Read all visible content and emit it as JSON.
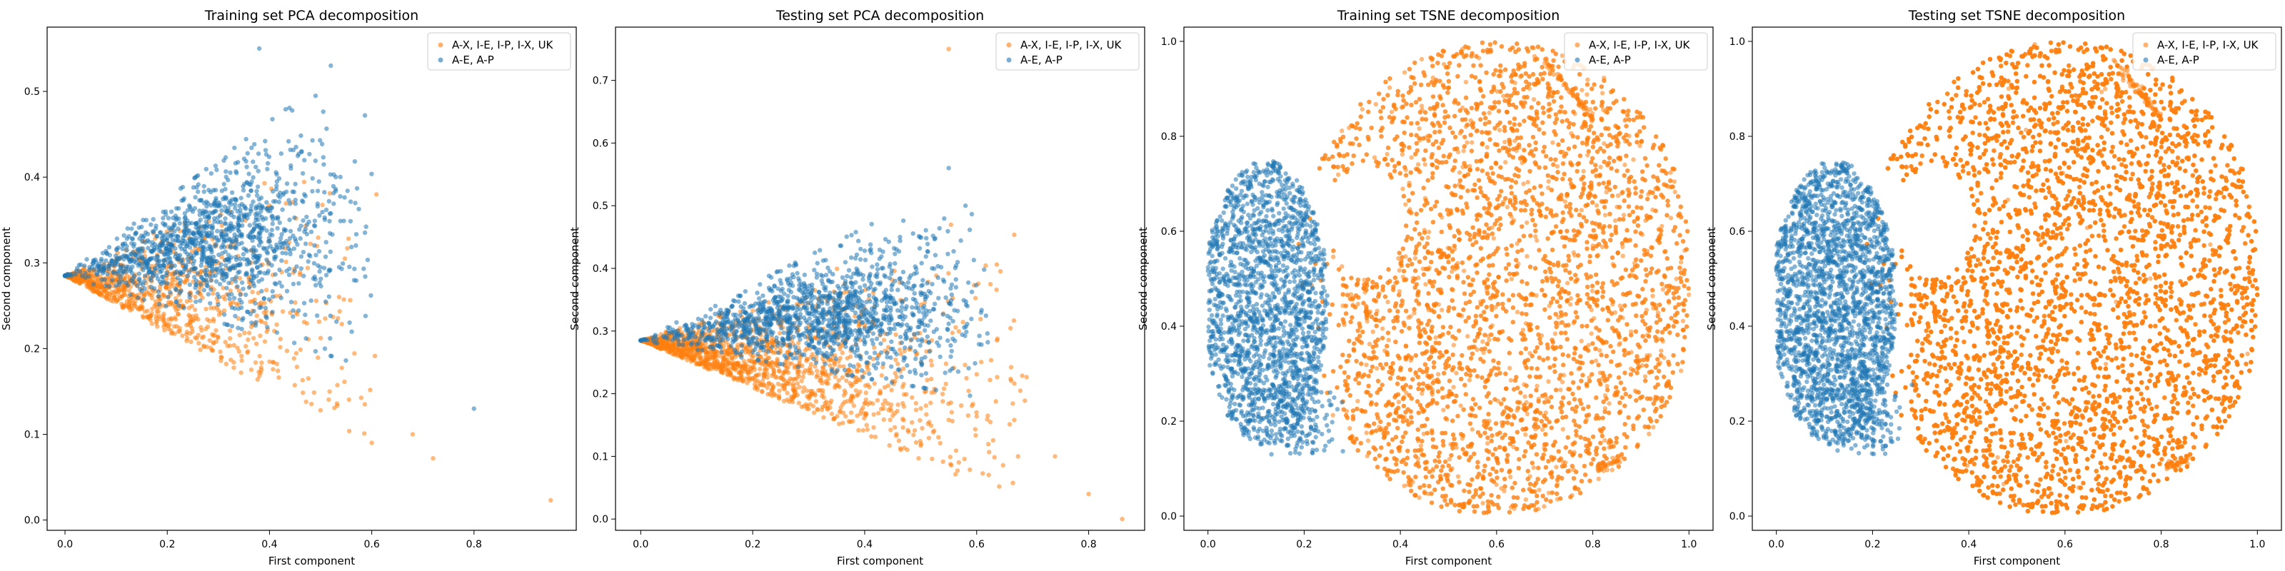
{
  "colors": {
    "series_a": "#ff7f0e",
    "series_b": "#1f77b4"
  },
  "chart_data": [
    {
      "type": "scatter",
      "title": "Training set PCA decomposition",
      "xlabel": "First component",
      "ylabel": "Second component",
      "xlim": [
        -0.035,
        1.0
      ],
      "ylim": [
        -0.012,
        0.575
      ],
      "xticks": [
        0.0,
        0.2,
        0.4,
        0.6,
        0.8
      ],
      "yticks": [
        0.0,
        0.1,
        0.2,
        0.3,
        0.4,
        0.5
      ],
      "legend": "top-right",
      "grid": false,
      "series": [
        {
          "name": "A-X, I-E, I-P, I-X, UK",
          "color": "#ff7f0e",
          "shape": "pca-lower",
          "count": 900,
          "apex": [
            0.0,
            0.285
          ],
          "extent": 0.62,
          "upper_slope": 0.33,
          "lower_slope": -0.33,
          "outliers": [
            [
              0.95,
              0.023
            ],
            [
              0.72,
              0.072
            ],
            [
              0.68,
              0.1
            ],
            [
              0.6,
              0.09
            ]
          ]
        },
        {
          "name": "A-E, A-P",
          "color": "#1f77b4",
          "shape": "pca-upper",
          "count": 1300,
          "apex": [
            0.0,
            0.285
          ],
          "extent": 0.6,
          "upper_slope": 0.45,
          "lower_slope": -0.18,
          "center": [
            0.3,
            0.33
          ],
          "outliers": [
            [
              0.8,
              0.13
            ],
            [
              0.38,
              0.55
            ],
            [
              0.52,
              0.53
            ]
          ]
        }
      ]
    },
    {
      "type": "scatter",
      "title": "Testing set PCA decomposition",
      "xlabel": "First component",
      "ylabel": "Second component",
      "xlim": [
        -0.045,
        0.9
      ],
      "ylim": [
        -0.018,
        0.785
      ],
      "xticks": [
        0.0,
        0.2,
        0.4,
        0.6,
        0.8
      ],
      "yticks": [
        0.0,
        0.1,
        0.2,
        0.3,
        0.4,
        0.5,
        0.6,
        0.7
      ],
      "legend": "top-right",
      "grid": false,
      "series": [
        {
          "name": "A-X, I-E, I-P, I-X, UK",
          "color": "#ff7f0e",
          "shape": "pca-lower",
          "count": 1500,
          "apex": [
            0.0,
            0.285
          ],
          "extent": 0.7,
          "upper_slope": 0.34,
          "lower_slope": -0.38,
          "outliers": [
            [
              0.86,
              0.0
            ],
            [
              0.55,
              0.75
            ],
            [
              0.8,
              0.04
            ],
            [
              0.74,
              0.1
            ]
          ]
        },
        {
          "name": "A-E, A-P",
          "color": "#1f77b4",
          "shape": "pca-upper",
          "count": 1400,
          "apex": [
            0.0,
            0.285
          ],
          "extent": 0.62,
          "upper_slope": 0.45,
          "lower_slope": -0.15,
          "center": [
            0.33,
            0.33
          ],
          "outliers": [
            [
              0.55,
              0.56
            ],
            [
              0.58,
              0.5
            ]
          ]
        }
      ]
    },
    {
      "type": "scatter",
      "title": "Training set TSNE decomposition",
      "xlabel": "First component",
      "ylabel": "Second component",
      "xlim": [
        -0.05,
        1.05
      ],
      "ylim": [
        -0.03,
        1.03
      ],
      "xticks": [
        0.0,
        0.2,
        0.4,
        0.6,
        0.8,
        1.0
      ],
      "yticks": [
        0.0,
        0.2,
        0.4,
        0.6,
        0.8,
        1.0
      ],
      "legend": "top-right",
      "grid": false,
      "series": [
        {
          "name": "A-X, I-E, I-P, I-X, UK",
          "color": "#ff7f0e",
          "shape": "tsne-main",
          "count": 5500
        },
        {
          "name": "A-E, A-P",
          "color": "#1f77b4",
          "shape": "tsne-left",
          "count": 1800
        }
      ]
    },
    {
      "type": "scatter",
      "title": "Testing set TSNE decomposition",
      "xlabel": "First component",
      "ylabel": "Second component",
      "xlim": [
        -0.05,
        1.05
      ],
      "ylim": [
        -0.03,
        1.03
      ],
      "xticks": [
        0.0,
        0.2,
        0.4,
        0.6,
        0.8,
        1.0
      ],
      "yticks": [
        0.0,
        0.2,
        0.4,
        0.6,
        0.8,
        1.0
      ],
      "legend": "top-right",
      "grid": false,
      "series": [
        {
          "name": "A-X, I-E, I-P, I-X, UK",
          "color": "#ff7f0e",
          "shape": "tsne-main",
          "count": 11000
        },
        {
          "name": "A-E, A-P",
          "color": "#1f77b4",
          "shape": "tsne-left",
          "count": 2200
        }
      ]
    }
  ]
}
